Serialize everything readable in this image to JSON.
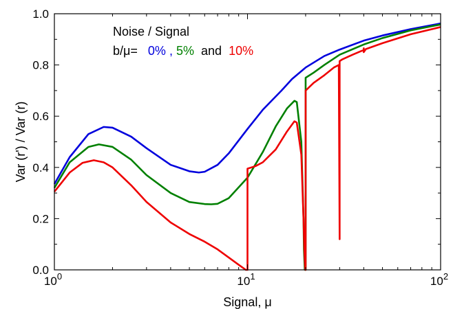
{
  "chart_data": {
    "type": "line",
    "x_scale": "log",
    "xlim": [
      1,
      100
    ],
    "ylim": [
      0.0,
      1.0
    ],
    "xlabel": "Signal, μ",
    "ylabel": "Var (r') / Var (r)",
    "x_ticks": [
      {
        "value": 1,
        "base": "10",
        "exp": "0"
      },
      {
        "value": 10,
        "base": "10",
        "exp": "1"
      },
      {
        "value": 100,
        "base": "10",
        "exp": "2"
      }
    ],
    "y_ticks": [
      {
        "value": 0.0,
        "label": "0.0"
      },
      {
        "value": 0.2,
        "label": "0.2"
      },
      {
        "value": 0.4,
        "label": "0.4"
      },
      {
        "value": 0.6,
        "label": "0.6"
      },
      {
        "value": 0.8,
        "label": "0.8"
      },
      {
        "value": 1.0,
        "label": "1.0"
      }
    ],
    "grid": false,
    "annotation": {
      "line1": "Noise / Signal",
      "line2_prefix": "b/μ=",
      "v0": "0%",
      "comma": ",",
      "v5": "5%",
      "and": "and",
      "v10": "10%"
    },
    "series": [
      {
        "color": "#0000dd",
        "x": [
          1,
          1.2,
          1.5,
          1.8,
          2,
          2.5,
          3,
          4,
          5,
          5.6,
          6,
          7,
          8,
          10,
          12,
          15,
          17,
          20,
          25,
          30,
          40,
          50,
          70,
          100
        ],
        "y": [
          0.335,
          0.44,
          0.53,
          0.558,
          0.555,
          0.52,
          0.475,
          0.41,
          0.385,
          0.38,
          0.383,
          0.41,
          0.455,
          0.55,
          0.625,
          0.7,
          0.745,
          0.79,
          0.835,
          0.86,
          0.895,
          0.915,
          0.94,
          0.962
        ]
      },
      {
        "color": "#008000",
        "x": [
          1,
          1.2,
          1.5,
          1.7,
          2,
          2.5,
          3,
          4,
          5,
          6,
          6.5,
          7,
          8,
          10,
          12,
          14,
          16,
          17.5,
          18,
          19,
          19.5,
          19.6,
          19.8,
          20,
          20,
          22,
          25,
          30,
          40,
          50,
          70,
          100
        ],
        "y": [
          0.32,
          0.42,
          0.48,
          0.49,
          0.48,
          0.43,
          0.37,
          0.3,
          0.265,
          0.257,
          0.256,
          0.258,
          0.28,
          0.36,
          0.46,
          0.56,
          0.63,
          0.66,
          0.655,
          0.5,
          0.2,
          0.08,
          0.0,
          0.0,
          0.75,
          0.77,
          0.8,
          0.84,
          0.88,
          0.905,
          0.935,
          0.958
        ]
      },
      {
        "color": "#ee0000",
        "x": [
          1,
          1.2,
          1.4,
          1.6,
          1.8,
          2,
          2.5,
          3,
          4,
          5,
          6,
          7,
          8,
          9,
          9.6,
          9.8,
          10,
          10,
          11,
          12,
          14,
          16,
          17.5,
          18,
          19,
          19.5,
          19.7,
          19.9,
          20,
          20,
          22,
          25,
          28,
          29.7,
          30,
          30,
          30,
          31,
          35,
          39,
          40,
          40,
          40,
          41,
          50,
          70,
          100
        ],
        "y": [
          0.305,
          0.38,
          0.418,
          0.428,
          0.42,
          0.4,
          0.33,
          0.265,
          0.185,
          0.14,
          0.11,
          0.08,
          0.048,
          0.02,
          0.005,
          0.0,
          0.0,
          0.395,
          0.405,
          0.42,
          0.47,
          0.54,
          0.58,
          0.575,
          0.45,
          0.2,
          0.08,
          0.0,
          0.0,
          0.7,
          0.73,
          0.76,
          0.79,
          0.8,
          0.12,
          0.12,
          0.815,
          0.822,
          0.84,
          0.855,
          0.858,
          0.865,
          0.85,
          0.862,
          0.885,
          0.92,
          0.948
        ]
      }
    ]
  }
}
